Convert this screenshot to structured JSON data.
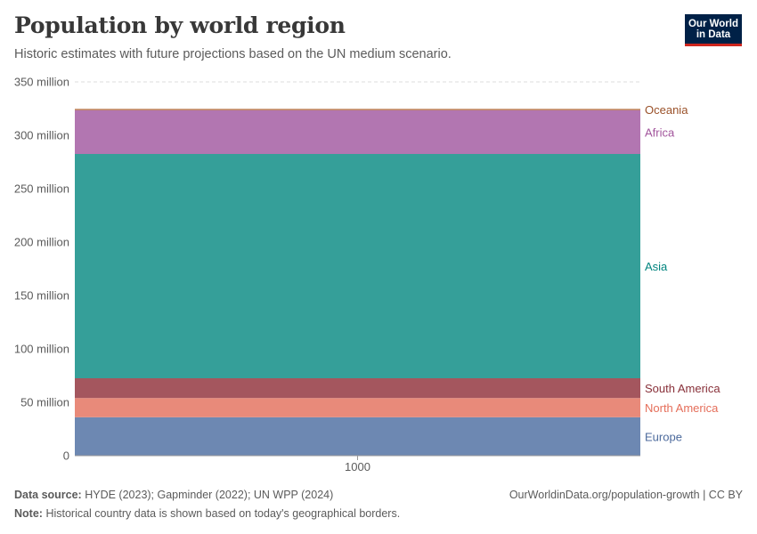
{
  "header": {
    "title": "Population by world region",
    "subtitle": "Historic estimates with future projections based on the UN medium scenario.",
    "logo_line1": "Our World",
    "logo_line2": "in Data"
  },
  "footer": {
    "source_label": "Data source:",
    "source_text": "HYDE (2023); Gapminder (2022); UN WPP (2024)",
    "note_label": "Note:",
    "note_text": "Historical country data is shown based on today's geographical borders.",
    "credit": "OurWorldinData.org/population-growth | CC BY"
  },
  "chart_data": {
    "type": "area",
    "stacked": true,
    "title": "Population by world region",
    "x": [
      "1000"
    ],
    "xticks": [
      "1000"
    ],
    "ylim": [
      0,
      350000000
    ],
    "yticks": [
      0,
      50000000,
      100000000,
      150000000,
      200000000,
      250000000,
      300000000,
      350000000
    ],
    "ytick_labels": [
      "0",
      "50 million",
      "100 million",
      "150 million",
      "200 million",
      "250 million",
      "300 million",
      "350 million"
    ],
    "grid": "horizontal dashed",
    "legend": "right, inline labels",
    "series": [
      {
        "name": "Europe",
        "values": [
          36000000
        ],
        "color": "#6d88b2",
        "label_color": "#4c6a9c"
      },
      {
        "name": "North America",
        "values": [
          18000000
        ],
        "color": "#e88a7a",
        "label_color": "#e56e5a"
      },
      {
        "name": "South America",
        "values": [
          18500000
        ],
        "color": "#a4565e",
        "label_color": "#883039"
      },
      {
        "name": "Asia",
        "values": [
          210000000
        ],
        "color": "#359f99",
        "label_color": "#00847e"
      },
      {
        "name": "Africa",
        "values": [
          41000000
        ],
        "color": "#b276b1",
        "label_color": "#a2559c"
      },
      {
        "name": "Oceania",
        "values": [
          1200000
        ],
        "color": "#b8764a",
        "label_color": "#9a5129"
      }
    ]
  }
}
